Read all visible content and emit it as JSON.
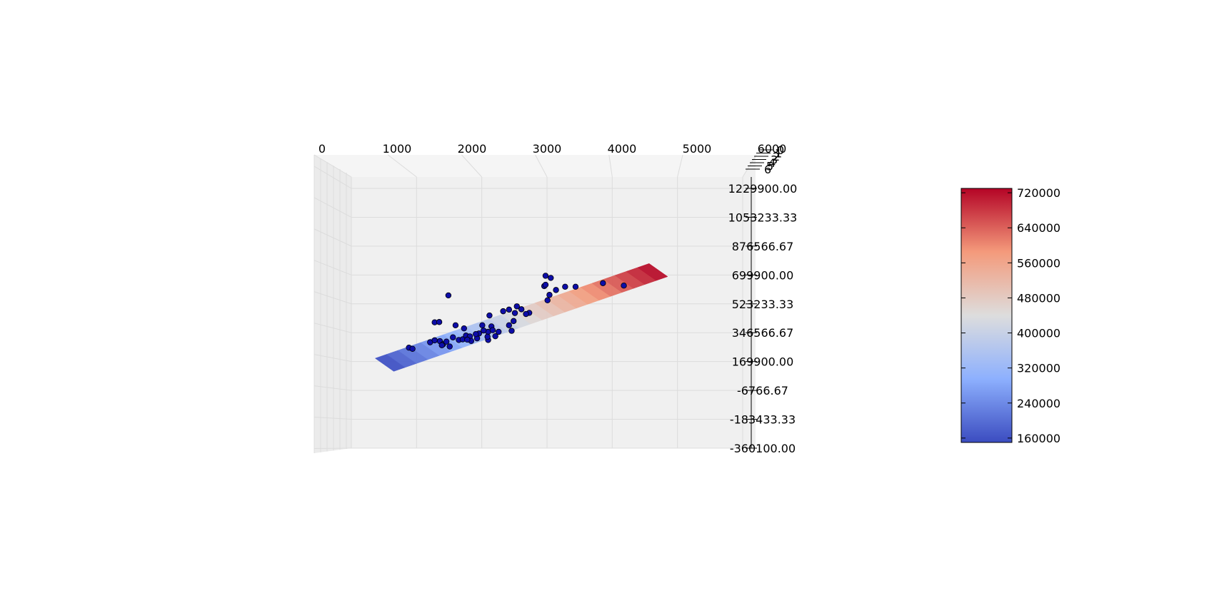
{
  "chart_data": {
    "type": "scatter",
    "subtype": "3d-scatter-with-regression-plane",
    "x_ticks": [
      "0",
      "1000",
      "2000",
      "3000",
      "4000",
      "5000",
      "6000"
    ],
    "y_ticks": [
      "0",
      "1",
      "2",
      "3",
      "4",
      "5",
      "6"
    ],
    "z_ticks": [
      "1229900.00",
      "1053233.33",
      "876566.67",
      "699900.00",
      "523233.33",
      "346566.67",
      "169900.00",
      "-6766.67",
      "-183433.33",
      "-360100.00"
    ],
    "xlim": [
      0,
      6000
    ],
    "zlim": [
      -360100,
      1229900
    ],
    "grid": true,
    "points": [
      {
        "x": 1025,
        "z": 255000
      },
      {
        "x": 1080,
        "z": 248000
      },
      {
        "x": 1420,
        "z": 410000
      },
      {
        "x": 1490,
        "z": 412000
      },
      {
        "x": 1350,
        "z": 288000
      },
      {
        "x": 1420,
        "z": 300000
      },
      {
        "x": 1500,
        "z": 295000
      },
      {
        "x": 1550,
        "z": 276000
      },
      {
        "x": 1530,
        "z": 270000
      },
      {
        "x": 1600,
        "z": 292000
      },
      {
        "x": 1650,
        "z": 262000
      },
      {
        "x": 1700,
        "z": 318000
      },
      {
        "x": 1790,
        "z": 302000
      },
      {
        "x": 1850,
        "z": 306000
      },
      {
        "x": 1900,
        "z": 329000
      },
      {
        "x": 1960,
        "z": 324000
      },
      {
        "x": 1980,
        "z": 296000
      },
      {
        "x": 1920,
        "z": 304000
      },
      {
        "x": 2070,
        "z": 312000
      },
      {
        "x": 2100,
        "z": 342000
      },
      {
        "x": 2240,
        "z": 352000
      },
      {
        "x": 2290,
        "z": 385000
      },
      {
        "x": 2350,
        "z": 325000
      },
      {
        "x": 2400,
        "z": 352000
      },
      {
        "x": 1740,
        "z": 392000
      },
      {
        "x": 1870,
        "z": 373000
      },
      {
        "x": 2150,
        "z": 392000
      },
      {
        "x": 2240,
        "z": 302000
      },
      {
        "x": 2230,
        "z": 322000
      },
      {
        "x": 2310,
        "z": 362000
      },
      {
        "x": 2050,
        "z": 338000
      },
      {
        "x": 2170,
        "z": 360000
      },
      {
        "x": 1630,
        "z": 575000
      },
      {
        "x": 2600,
        "z": 358000
      },
      {
        "x": 2560,
        "z": 392000
      },
      {
        "x": 2630,
        "z": 418000
      },
      {
        "x": 2260,
        "z": 452000
      },
      {
        "x": 2470,
        "z": 478000
      },
      {
        "x": 2560,
        "z": 488000
      },
      {
        "x": 2650,
        "z": 467000
      },
      {
        "x": 2750,
        "z": 490000
      },
      {
        "x": 2680,
        "z": 508000
      },
      {
        "x": 2870,
        "z": 468000
      },
      {
        "x": 2820,
        "z": 461000
      },
      {
        "x": 3150,
        "z": 545000
      },
      {
        "x": 3180,
        "z": 578000
      },
      {
        "x": 3100,
        "z": 632000
      },
      {
        "x": 3120,
        "z": 640000
      },
      {
        "x": 3280,
        "z": 608000
      },
      {
        "x": 3420,
        "z": 628000
      },
      {
        "x": 3580,
        "z": 628000
      },
      {
        "x": 3120,
        "z": 695000
      },
      {
        "x": 3200,
        "z": 682000
      },
      {
        "x": 4000,
        "z": 650000
      },
      {
        "x": 4320,
        "z": 635000
      }
    ],
    "surface": {
      "x_range": [
        650,
        4850
      ],
      "value_range": [
        150000,
        730000
      ]
    },
    "colorbar": {
      "colormap": "coolwarm",
      "min": 150000,
      "max": 730000,
      "ticks": [
        {
          "label": "720000",
          "value": 720000
        },
        {
          "label": "640000",
          "value": 640000
        },
        {
          "label": "560000",
          "value": 560000
        },
        {
          "label": "480000",
          "value": 480000
        },
        {
          "label": "400000",
          "value": 400000
        },
        {
          "label": "320000",
          "value": 320000
        },
        {
          "label": "240000",
          "value": 240000
        },
        {
          "label": "160000",
          "value": 160000
        }
      ]
    },
    "colors": {
      "pane": "#f0f0f0",
      "grid": "#dcdcdc",
      "point_fill": "#0d0da8",
      "point_edge": "#000000",
      "cool": "#3b4cc0",
      "neutral": "#dddddd",
      "warm": "#b40426"
    }
  }
}
